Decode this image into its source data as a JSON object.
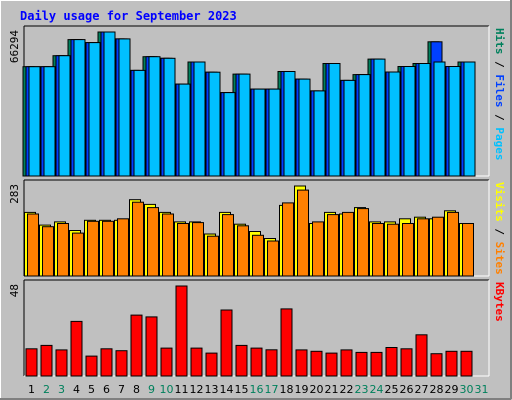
{
  "chart_data": {
    "type": "bar",
    "title": "Daily usage for September 2023",
    "colors": {
      "background": "#c0c0c0",
      "plot_bg": "#c0c0c0",
      "title": "#0000ff",
      "hits": "#00805c",
      "files": "#0040ff",
      "pages": "#00c0ff",
      "visits": "#ffff00",
      "sites": "#ff8000",
      "kbytes": "#ff0000",
      "weekday_label": "#000000",
      "weekend_label": "#00805c"
    },
    "days": [
      {
        "label": "1",
        "weekend": false
      },
      {
        "label": "2",
        "weekend": true
      },
      {
        "label": "3",
        "weekend": true
      },
      {
        "label": "4",
        "weekend": false
      },
      {
        "label": "5",
        "weekend": false
      },
      {
        "label": "6",
        "weekend": false
      },
      {
        "label": "7",
        "weekend": false
      },
      {
        "label": "8",
        "weekend": false
      },
      {
        "label": "9",
        "weekend": true
      },
      {
        "label": "10",
        "weekend": true
      },
      {
        "label": "11",
        "weekend": false
      },
      {
        "label": "12",
        "weekend": false
      },
      {
        "label": "13",
        "weekend": false
      },
      {
        "label": "14",
        "weekend": false
      },
      {
        "label": "15",
        "weekend": false
      },
      {
        "label": "16",
        "weekend": true
      },
      {
        "label": "17",
        "weekend": true
      },
      {
        "label": "18",
        "weekend": false
      },
      {
        "label": "19",
        "weekend": false
      },
      {
        "label": "20",
        "weekend": false
      },
      {
        "label": "21",
        "weekend": false
      },
      {
        "label": "22",
        "weekend": false
      },
      {
        "label": "23",
        "weekend": true
      },
      {
        "label": "24",
        "weekend": true
      },
      {
        "label": "25",
        "weekend": false
      },
      {
        "label": "26",
        "weekend": false
      },
      {
        "label": "27",
        "weekend": false
      },
      {
        "label": "28",
        "weekend": false
      },
      {
        "label": "29",
        "weekend": false
      },
      {
        "label": "30",
        "weekend": true
      },
      {
        "label": "31",
        "weekend": true
      }
    ],
    "panels": [
      {
        "id": "hits",
        "max_label": "66294",
        "ylim": [
          0,
          66294
        ],
        "legend": [
          {
            "text": "Hits",
            "color": "#00805c"
          },
          {
            "text": " / ",
            "color": "#000000"
          },
          {
            "text": "Files",
            "color": "#0040ff"
          },
          {
            "text": " / ",
            "color": "#000000"
          },
          {
            "text": "Pages",
            "color": "#00c0ff"
          }
        ],
        "series": [
          {
            "key": "hits",
            "color": "#00805c",
            "values": [
              50300,
              50300,
              55400,
              62800,
              61400,
              66294,
              63100,
              48600,
              54900,
              54200,
              42300,
              52500,
              47800,
              38400,
              46900,
              40000,
              40000,
              48100,
              44600,
              39200,
              51800,
              44000,
              46700,
              53800,
              47900,
              50400,
              51800,
              61800,
              50400,
              52500,
              null
            ]
          },
          {
            "key": "files",
            "color": "#0040ff",
            "values": [
              50300,
              50300,
              55400,
              62800,
              61400,
              66294,
              63100,
              48600,
              54900,
              54200,
              42300,
              52500,
              47800,
              38400,
              46900,
              40000,
              40000,
              48100,
              44600,
              39200,
              51800,
              44000,
              46700,
              53800,
              47900,
              50400,
              51800,
              61800,
              50400,
              52500,
              null
            ]
          },
          {
            "key": "pages",
            "color": "#00c0ff",
            "values": [
              50300,
              50300,
              55400,
              62800,
              61400,
              66294,
              63100,
              48600,
              54900,
              54200,
              42300,
              52500,
              47800,
              38400,
              46900,
              40000,
              40000,
              48100,
              44600,
              39200,
              51800,
              44000,
              46700,
              53800,
              47900,
              50400,
              51800,
              52500,
              50400,
              52500,
              null
            ]
          }
        ]
      },
      {
        "id": "sites",
        "max_label": "283",
        "ylim": [
          0,
          283
        ],
        "legend": [
          {
            "text": "Visits",
            "color": "#ffff00"
          },
          {
            "text": " / ",
            "color": "#000000"
          },
          {
            "text": "Sites",
            "color": "#ff8000"
          }
        ],
        "series": [
          {
            "key": "visits",
            "color": "#ffff00",
            "values": [
              200,
              160,
              170,
              143,
              175,
              175,
              175,
              240,
              225,
              200,
              170,
              170,
              132,
              200,
              163,
              140,
              118,
              222,
              283,
              165,
              200,
              195,
              215,
              170,
              170,
              180,
              185,
              180,
              205,
              165,
              null
            ]
          },
          {
            "key": "sites",
            "color": "#ff8000",
            "values": [
              195,
              155,
              165,
              135,
              172,
              172,
              180,
              232,
              215,
              195,
              165,
              168,
              125,
              193,
              158,
              128,
              110,
              230,
              270,
              170,
              193,
              200,
              212,
              165,
              163,
              165,
              180,
              185,
              200,
              165,
              null
            ]
          }
        ]
      },
      {
        "id": "kbytes",
        "max_label": "48",
        "ylim": [
          0,
          48
        ],
        "legend": [
          {
            "text": "KBytes",
            "color": "#ff0000"
          }
        ],
        "series": [
          {
            "key": "kbytes",
            "color": "#ff0000",
            "values": [
              14.5,
              16.3,
              13.9,
              29.1,
              10.6,
              14.5,
              13.5,
              32.5,
              31.5,
              14.9,
              48,
              14.9,
              12.2,
              35.2,
              16.3,
              14.9,
              14.0,
              35.8,
              13.9,
              13.2,
              12.2,
              13.9,
              12.6,
              12.6,
              15.2,
              14.5,
              22.0,
              11.9,
              13.2,
              13.2,
              null
            ]
          }
        ]
      }
    ]
  }
}
